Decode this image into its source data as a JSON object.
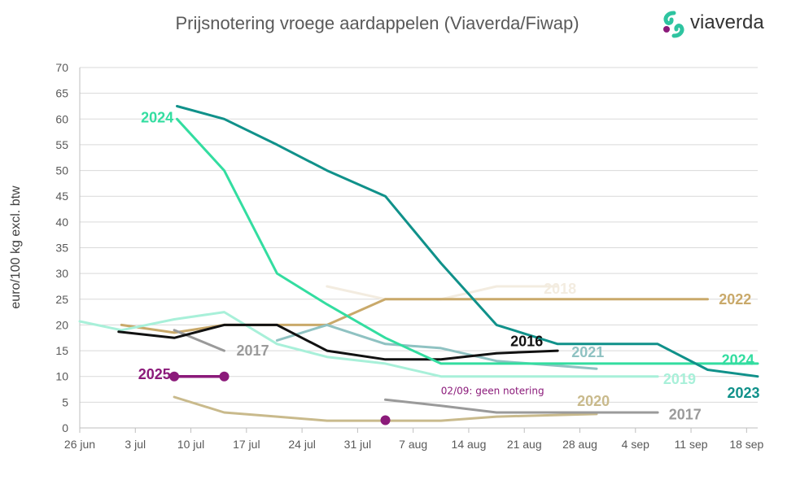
{
  "title": "Prijsnotering vroege aardappelen (Viaverda/Fiwap)",
  "logo": {
    "text": "viaverda",
    "icon": "viaverda-logo-icon",
    "colors": [
      "#2ec4a0",
      "#8b1a7a"
    ]
  },
  "chart_data": {
    "type": "line",
    "ylabel": "euro/100 kg excl. btw",
    "ylim": [
      0,
      70
    ],
    "yticks": [
      0,
      5,
      10,
      15,
      20,
      25,
      30,
      35,
      40,
      45,
      50,
      55,
      60,
      65,
      70
    ],
    "xlim": [
      0,
      12.2
    ],
    "xticks": [
      "26 jun",
      "3 jul",
      "10 jul",
      "17 jul",
      "24 jul",
      "31 jul",
      "7 aug",
      "14 aug",
      "21 aug",
      "28 aug",
      "4 sep",
      "11 sep",
      "18 sep"
    ],
    "grid": "horizontal",
    "annotation": {
      "text": "02/09: geen notering",
      "x": 6.5,
      "y": 7.2,
      "color": "#8b1a7a"
    },
    "series": [
      {
        "name": "2018",
        "color": "#f3ece0",
        "width": 3,
        "label": "2018",
        "label_x": 8.35,
        "label_y": 27,
        "points": [
          [
            4.45,
            27.5
          ],
          [
            5.5,
            25
          ],
          [
            6.5,
            25
          ],
          [
            7.5,
            27.5
          ],
          [
            8.6,
            27.5
          ]
        ]
      },
      {
        "name": "2022",
        "color": "#c9a96a",
        "width": 3,
        "label": "2022",
        "label_x": 11.5,
        "label_y": 25,
        "points": [
          [
            0.75,
            20
          ],
          [
            1.7,
            18.5
          ],
          [
            2.6,
            20
          ],
          [
            4.45,
            20
          ],
          [
            5.5,
            25
          ],
          [
            11.3,
            25
          ]
        ]
      },
      {
        "name": "2017",
        "color": "#9a9a9a",
        "width": 3,
        "label": "2017",
        "label_x": 2.82,
        "label_y": 15,
        "points": [
          [
            1.7,
            19
          ],
          [
            2.6,
            15
          ]
        ]
      },
      {
        "name": "2021",
        "color": "#8fc2c2",
        "width": 3,
        "label": "2021",
        "label_x": 8.85,
        "label_y": 14.7,
        "points": [
          [
            3.55,
            17
          ],
          [
            4.45,
            20
          ],
          [
            5.5,
            16.3
          ],
          [
            6.5,
            15.5
          ],
          [
            7.5,
            13
          ],
          [
            9.3,
            11.5
          ]
        ]
      },
      {
        "name": "2019",
        "color": "#a8f0d9",
        "width": 3,
        "label": "2019",
        "label_x": 10.5,
        "label_y": 9.5,
        "points": [
          [
            0,
            20.7
          ],
          [
            0.75,
            19
          ],
          [
            1.7,
            21.1
          ],
          [
            2.6,
            22.5
          ],
          [
            3.55,
            16.3
          ],
          [
            4.45,
            13.8
          ],
          [
            5.5,
            12.5
          ],
          [
            6.5,
            10
          ],
          [
            10.4,
            10
          ]
        ]
      },
      {
        "name": "2016",
        "color": "#111111",
        "width": 3,
        "label": "2016",
        "label_x": 7.75,
        "label_y": 16.8,
        "points": [
          [
            0.7,
            18.7
          ],
          [
            1.7,
            17.5
          ],
          [
            2.6,
            20
          ],
          [
            3.55,
            20
          ],
          [
            4.45,
            15
          ],
          [
            5.5,
            13.3
          ],
          [
            6.5,
            13.3
          ],
          [
            7.5,
            14.5
          ],
          [
            8.6,
            15
          ]
        ]
      },
      {
        "name": "2020",
        "color": "#c9ba8c",
        "width": 3,
        "label": "2020",
        "label_x": 8.95,
        "label_y": 5.2,
        "points": [
          [
            1.7,
            6
          ],
          [
            2.6,
            3
          ],
          [
            3.55,
            2.2
          ],
          [
            4.45,
            1.4
          ],
          [
            5.5,
            1.4
          ],
          [
            6.5,
            1.4
          ],
          [
            7.5,
            2.2
          ],
          [
            9.3,
            2.7
          ]
        ]
      },
      {
        "name": "2017",
        "color": "#9a9a9a",
        "width": 3,
        "label": "2017",
        "label_x": 10.6,
        "label_y": 2.6,
        "points": [
          [
            5.5,
            5.5
          ],
          [
            6.5,
            4.3
          ],
          [
            7.5,
            3
          ],
          [
            10.4,
            3
          ]
        ]
      },
      {
        "name": "2024",
        "color": "#33dda0",
        "width": 3,
        "label": "2024",
        "label_x": 11.55,
        "label_y": 13.2,
        "label2": "2024",
        "label2_x": 1.1,
        "label2_y": 60.3,
        "points": [
          [
            1.75,
            60
          ],
          [
            2.6,
            50
          ],
          [
            3.55,
            30
          ],
          [
            4.45,
            24
          ],
          [
            5.5,
            17.5
          ],
          [
            6.5,
            12.5
          ],
          [
            12.2,
            12.5
          ]
        ]
      },
      {
        "name": "2023",
        "color": "#10918a",
        "width": 3,
        "label": "2023",
        "label_x": 11.65,
        "label_y": 6.8,
        "points": [
          [
            1.75,
            62.5
          ],
          [
            2.6,
            60
          ],
          [
            3.55,
            55
          ],
          [
            4.45,
            50
          ],
          [
            5.5,
            45
          ],
          [
            6.5,
            32
          ],
          [
            7.5,
            20
          ],
          [
            8.6,
            16.3
          ],
          [
            10.4,
            16.3
          ],
          [
            11.3,
            11.3
          ],
          [
            12.2,
            10
          ]
        ]
      },
      {
        "name": "2025",
        "color": "#8b1a7a",
        "width": 3.5,
        "label": "2025",
        "label_x": 1.05,
        "label_y": 10.4,
        "markers": true,
        "points": [
          [
            1.7,
            10
          ],
          [
            2.6,
            10
          ]
        ]
      },
      {
        "name": "2025-single",
        "color": "#8b1a7a",
        "width": 0,
        "markers": true,
        "points": [
          [
            5.5,
            1.5
          ]
        ]
      }
    ]
  }
}
